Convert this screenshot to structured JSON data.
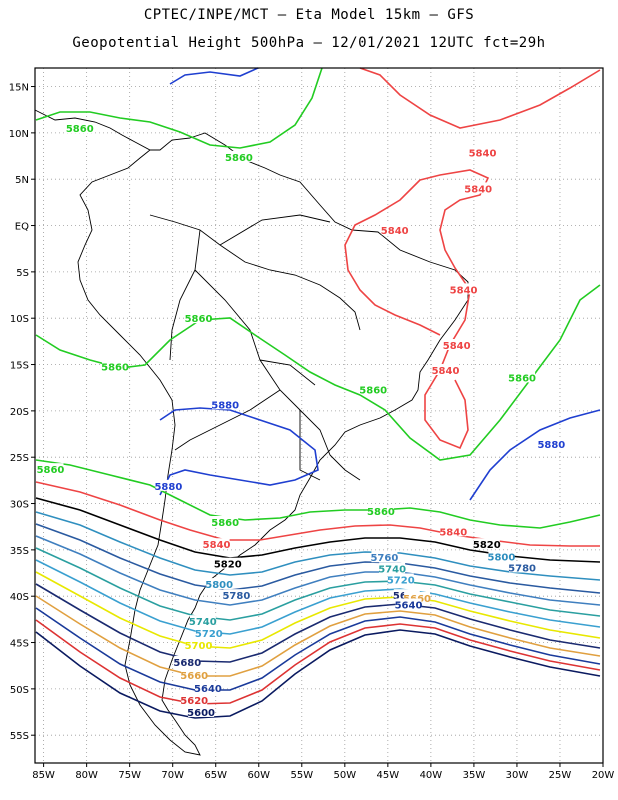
{
  "title": {
    "line1": "CPTEC/INPE/MCT –  Eta Model 15km – GFS",
    "line2": "Geopotential Height 500hPa – 12/01/2021 12UTC fct=29h"
  },
  "axes": {
    "lon_labels": [
      "85W",
      "80W",
      "75W",
      "70W",
      "65W",
      "60W",
      "55W",
      "50W",
      "45W",
      "40W",
      "35W",
      "30W",
      "25W",
      "20W"
    ],
    "lat_labels": [
      "15N",
      "10N",
      "5N",
      "EQ",
      "5S",
      "10S",
      "15S",
      "20S",
      "25S",
      "30S",
      "35S",
      "40S",
      "45S",
      "50S",
      "55S"
    ],
    "lon_range": [
      -86,
      -20
    ],
    "lat_range": [
      17,
      -58
    ],
    "grid": true
  },
  "colors": {
    "5880": "#1f3fd0",
    "5860": "#22cc22",
    "5840": "#ee4444",
    "5820": "#000000",
    "5800": "#2f8fbf",
    "5780": "#2a5aa0",
    "5760": "#3f7fbf",
    "5740": "#2a9fa0",
    "5720": "#3aa0d0",
    "5700": "#e8e800",
    "5680": "#1a2a70",
    "5660": "#e0a040",
    "5640": "#1a3a9a",
    "5620": "#dd3333",
    "5600": "#0a1a60"
  },
  "contour_labels": [
    {
      "text": "5860",
      "level": "5860",
      "lon": -80.8,
      "lat": 10.4
    },
    {
      "text": "5860",
      "level": "5860",
      "lon": -62.3,
      "lat": 7.3
    },
    {
      "text": "5840",
      "level": "5840",
      "lon": -34.0,
      "lat": 7.8
    },
    {
      "text": "5840",
      "level": "5840",
      "lon": -34.5,
      "lat": 3.9
    },
    {
      "text": "5840",
      "level": "5840",
      "lon": -44.2,
      "lat": -0.6
    },
    {
      "text": "5840",
      "level": "5840",
      "lon": -36.2,
      "lat": -7.0
    },
    {
      "text": "5840",
      "level": "5840",
      "lon": -37.0,
      "lat": -13.0
    },
    {
      "text": "5840",
      "level": "5840",
      "lon": -38.3,
      "lat": -15.7
    },
    {
      "text": "5860",
      "level": "5860",
      "lon": -67.0,
      "lat": -10.1
    },
    {
      "text": "5860",
      "level": "5860",
      "lon": -76.7,
      "lat": -15.3
    },
    {
      "text": "5860",
      "level": "5860",
      "lon": -29.4,
      "lat": -16.5
    },
    {
      "text": "5860",
      "level": "5860",
      "lon": -46.7,
      "lat": -17.8
    },
    {
      "text": "5880",
      "level": "5880",
      "lon": -63.9,
      "lat": -19.4
    },
    {
      "text": "5880",
      "level": "5880",
      "lon": -26.0,
      "lat": -23.7
    },
    {
      "text": "5860",
      "level": "5860",
      "lon": -84.2,
      "lat": -26.4
    },
    {
      "text": "5880",
      "level": "5880",
      "lon": -70.5,
      "lat": -28.2
    },
    {
      "text": "5860",
      "level": "5860",
      "lon": -45.8,
      "lat": -30.9
    },
    {
      "text": "5860",
      "level": "5860",
      "lon": -63.9,
      "lat": -32.1
    },
    {
      "text": "5840",
      "level": "5840",
      "lon": -37.4,
      "lat": -33.1
    },
    {
      "text": "5840",
      "level": "5840",
      "lon": -64.9,
      "lat": -34.5
    },
    {
      "text": "5820",
      "level": "5820",
      "lon": -33.5,
      "lat": -34.5
    },
    {
      "text": "5820",
      "level": "5820",
      "lon": -63.6,
      "lat": -36.6
    },
    {
      "text": "5800",
      "level": "5800",
      "lon": -31.8,
      "lat": -35.8
    },
    {
      "text": "5780",
      "level": "5780",
      "lon": -29.4,
      "lat": -37.0
    },
    {
      "text": "5760",
      "level": "5760",
      "lon": -45.4,
      "lat": -35.9
    },
    {
      "text": "5740",
      "level": "5740",
      "lon": -44.5,
      "lat": -37.1
    },
    {
      "text": "5720",
      "level": "5720",
      "lon": -43.5,
      "lat": -38.3
    },
    {
      "text": "5800",
      "level": "5800",
      "lon": -64.6,
      "lat": -38.8
    },
    {
      "text": "5780",
      "level": "5780",
      "lon": -62.6,
      "lat": -40.0
    },
    {
      "text": "5680",
      "level": "5680",
      "lon": -42.8,
      "lat": -40.0
    },
    {
      "text": "5660",
      "level": "5660",
      "lon": -41.6,
      "lat": -40.3
    },
    {
      "text": "5640",
      "level": "5640",
      "lon": -42.6,
      "lat": -41.0
    },
    {
      "text": "5740",
      "level": "5740",
      "lon": -66.5,
      "lat": -42.8
    },
    {
      "text": "5720",
      "level": "5720",
      "lon": -65.8,
      "lat": -44.1
    },
    {
      "text": "5700",
      "level": "5700",
      "lon": -67.0,
      "lat": -45.4
    },
    {
      "text": "5680",
      "level": "5680",
      "lon": -68.3,
      "lat": -47.2
    },
    {
      "text": "5660",
      "level": "5660",
      "lon": -67.5,
      "lat": -48.6
    },
    {
      "text": "5640",
      "level": "5640",
      "lon": -65.9,
      "lat": -50.0
    },
    {
      "text": "5620",
      "level": "5620",
      "lon": -67.5,
      "lat": -51.3
    },
    {
      "text": "5600",
      "level": "5600",
      "lon": -66.7,
      "lat": -52.6
    }
  ]
}
